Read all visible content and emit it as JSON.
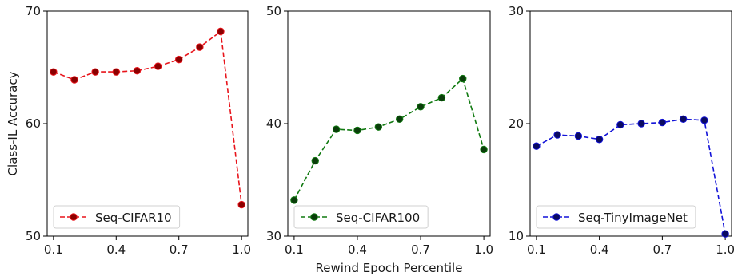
{
  "chart_data": [
    {
      "type": "line",
      "x": [
        0.1,
        0.2,
        0.3,
        0.4,
        0.5,
        0.6,
        0.7,
        0.8,
        0.9,
        1.0
      ],
      "series": [
        {
          "name": "Seq-CIFAR10",
          "values": [
            64.6,
            63.9,
            64.6,
            64.6,
            64.7,
            65.1,
            65.7,
            66.8,
            68.2,
            52.8
          ],
          "color": "#e8141b",
          "marker_color": "#8b0000"
        }
      ],
      "xticks": [
        "0.1",
        "0.4",
        "0.7",
        "1.0"
      ],
      "yticks": [
        "50",
        "60",
        "70"
      ],
      "xlim": [
        0.07,
        1.03
      ],
      "ylim": [
        50,
        70
      ],
      "xlabel": "",
      "ylabel": "Class-IL Accuracy",
      "legend": "lower-left",
      "grid": false
    },
    {
      "type": "line",
      "x": [
        0.1,
        0.2,
        0.3,
        0.4,
        0.5,
        0.6,
        0.7,
        0.8,
        0.9,
        1.0
      ],
      "series": [
        {
          "name": "Seq-CIFAR100",
          "values": [
            33.2,
            36.7,
            39.5,
            39.4,
            39.7,
            40.4,
            41.5,
            42.3,
            44.0,
            37.7
          ],
          "color": "#117a11",
          "marker_color": "#0a3d0a"
        }
      ],
      "xticks": [
        "0.1",
        "0.4",
        "0.7",
        "1.0"
      ],
      "yticks": [
        "30",
        "40",
        "50"
      ],
      "xlim": [
        0.07,
        1.03
      ],
      "ylim": [
        30,
        50
      ],
      "xlabel": "Rewind Epoch Percentile",
      "ylabel": "",
      "legend": "lower-left",
      "grid": false
    },
    {
      "type": "line",
      "x": [
        0.1,
        0.2,
        0.3,
        0.4,
        0.5,
        0.6,
        0.7,
        0.8,
        0.9,
        1.0
      ],
      "series": [
        {
          "name": "Seq-TinyImageNet",
          "values": [
            18.0,
            19.0,
            18.9,
            18.6,
            19.9,
            20.0,
            20.1,
            20.4,
            20.3,
            10.2
          ],
          "color": "#1212d8",
          "marker_color": "#0a0a60"
        }
      ],
      "xticks": [
        "0.1",
        "0.4",
        "0.7",
        "1.0"
      ],
      "yticks": [
        "10",
        "20",
        "30"
      ],
      "xlim": [
        0.07,
        1.03
      ],
      "ylim": [
        10,
        30
      ],
      "xlabel": "",
      "ylabel": "",
      "legend": "lower-left",
      "grid": false
    }
  ]
}
